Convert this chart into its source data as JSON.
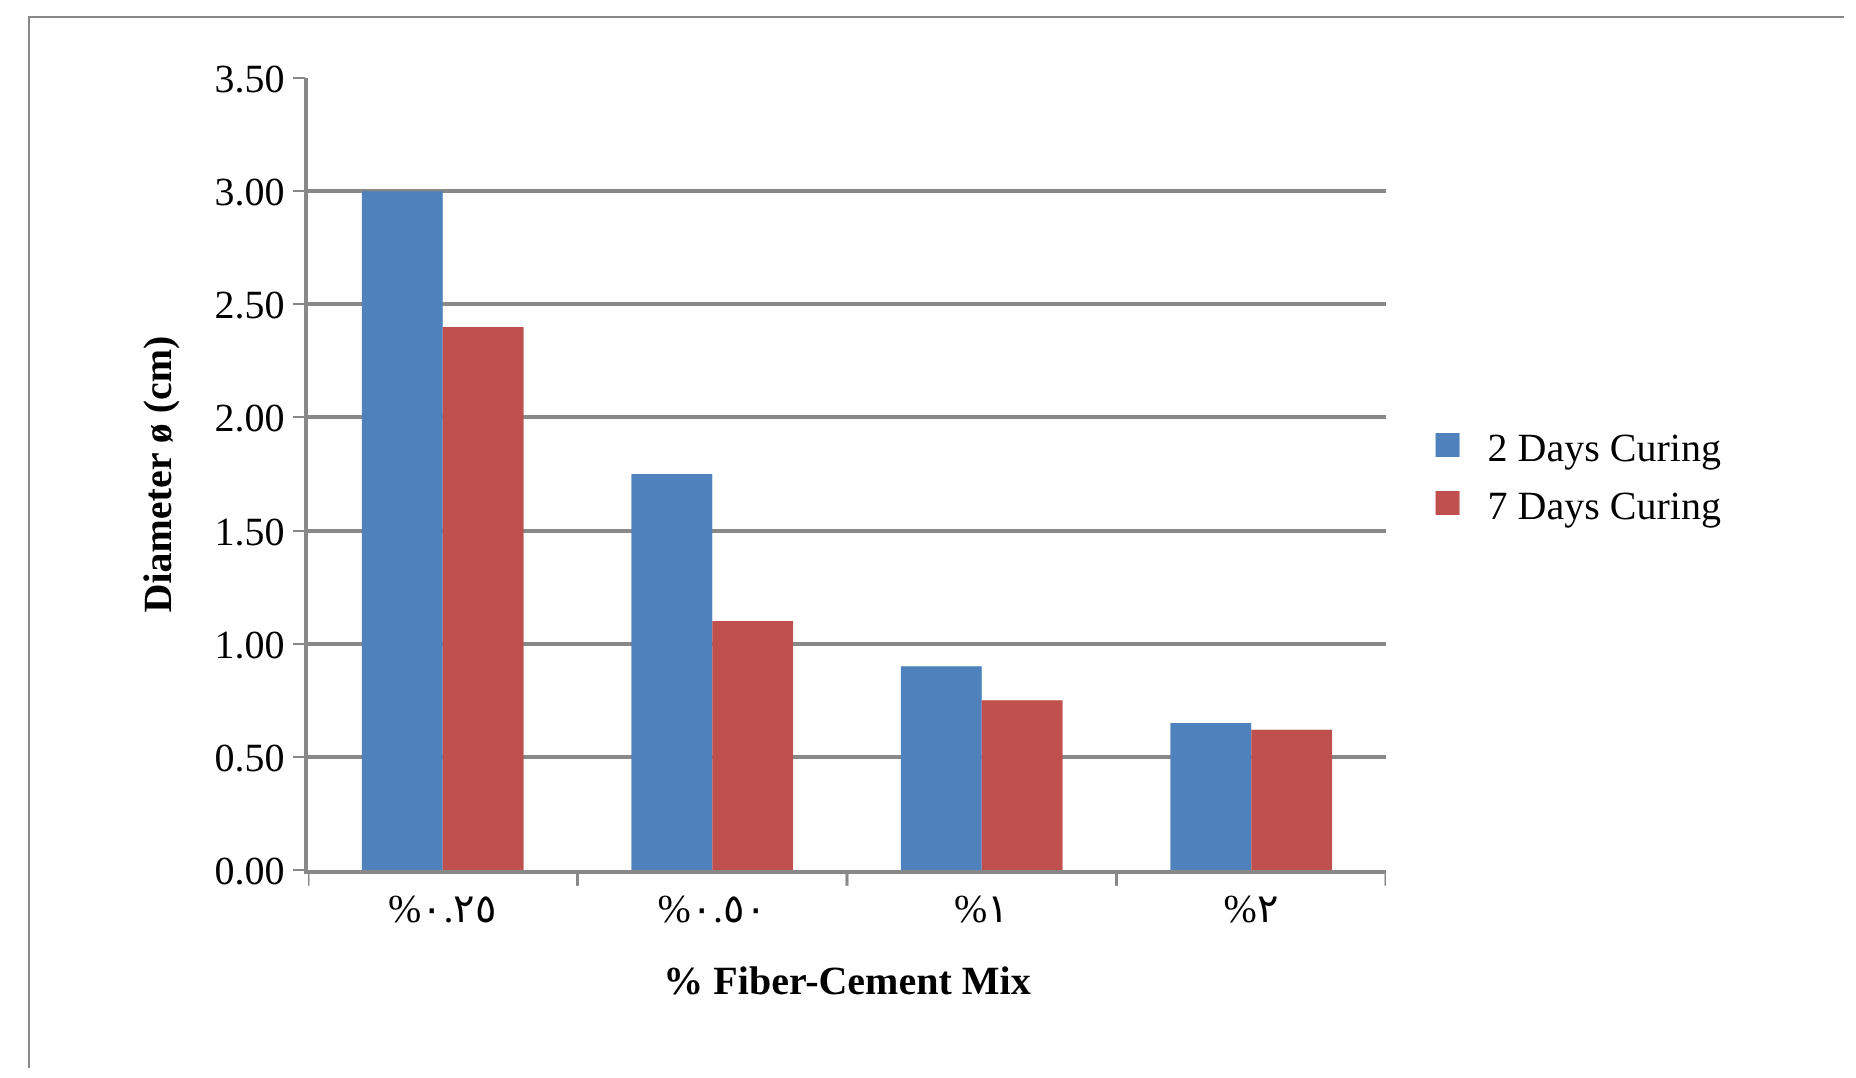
{
  "chart_data": {
    "type": "bar",
    "xlabel": "% Fiber-Cement Mix",
    "ylabel": "Diameter ø (cm)",
    "categories": [
      "%٠.٢٥",
      "%٠.٥٠",
      "%١",
      "%٢"
    ],
    "series": [
      {
        "name": "2 Days Curing",
        "color": "#4f81bd",
        "values": [
          3.0,
          1.75,
          0.9,
          0.65
        ]
      },
      {
        "name": "7 Days Curing",
        "color": "#c0504d",
        "values": [
          2.4,
          1.1,
          0.75,
          0.62
        ]
      }
    ],
    "ylim": [
      0,
      3.5
    ],
    "yticks": [
      {
        "value": 0,
        "label": "0.00"
      },
      {
        "value": 0.5,
        "label": "0.50"
      },
      {
        "value": 1,
        "label": "1.00"
      },
      {
        "value": 1.5,
        "label": "1.50"
      },
      {
        "value": 2,
        "label": "2.00"
      },
      {
        "value": 2.5,
        "label": "2.50"
      },
      {
        "value": 3,
        "label": "3.00"
      },
      {
        "value": 3.5,
        "label": "3.50"
      }
    ],
    "grid": "y",
    "legend": "right"
  }
}
